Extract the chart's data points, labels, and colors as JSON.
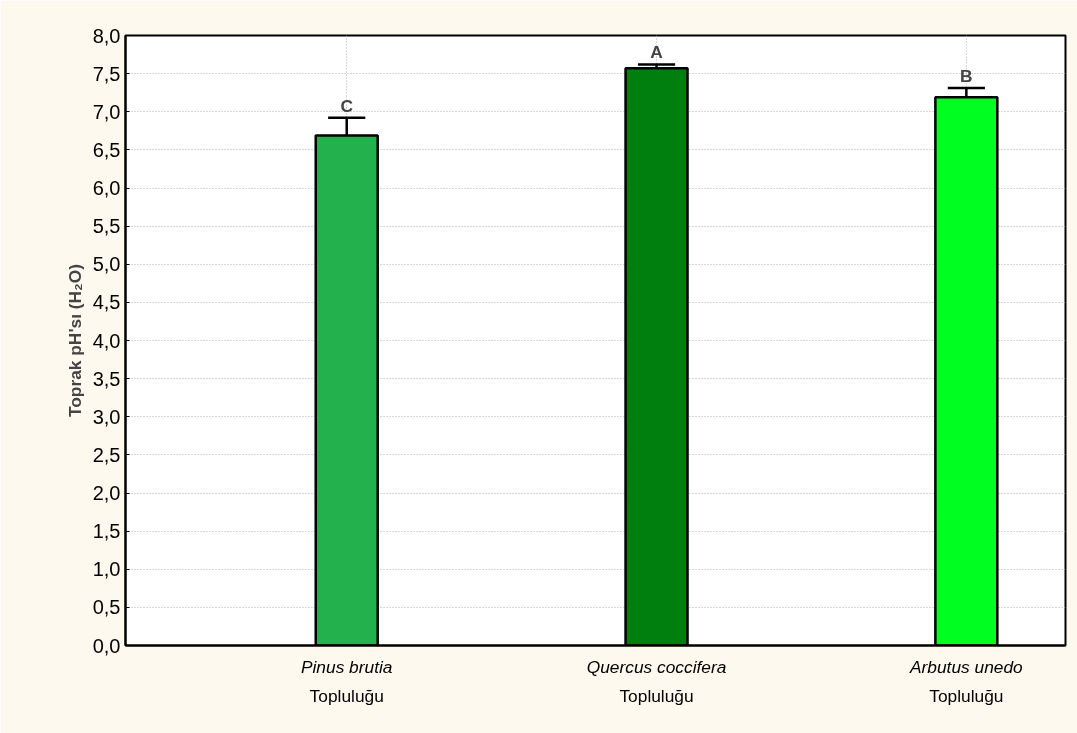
{
  "chart_data": {
    "type": "bar",
    "ylabel": "Toprak pH'sı (H₂O)",
    "categories": [
      "Pinus brutia\nTopluluğu",
      "Quercus coccifera\nTopluluğu",
      "Arbutus unedo\nTopluluğu"
    ],
    "values": [
      6.69,
      7.57,
      7.19
    ],
    "errors": [
      0.23,
      0.05,
      0.12
    ],
    "colors": [
      "#22b14c",
      "#007f0e",
      "#00ff21"
    ],
    "ylim": [
      0,
      8
    ],
    "yticks": [
      {
        "value": 0,
        "label": "0,0"
      },
      {
        "value": 0.5,
        "label": "0,5"
      },
      {
        "value": 1,
        "label": "1,0"
      },
      {
        "value": 1.5,
        "label": "1,5"
      },
      {
        "value": 2,
        "label": "2,0"
      },
      {
        "value": 2.5,
        "label": "2,5"
      },
      {
        "value": 3,
        "label": "3,0"
      },
      {
        "value": 3.5,
        "label": "3,5"
      },
      {
        "value": 4,
        "label": "4,0"
      },
      {
        "value": 4.5,
        "label": "4,5"
      },
      {
        "value": 5,
        "label": "5,0"
      },
      {
        "value": 5.5,
        "label": "5,5"
      },
      {
        "value": 6,
        "label": "6,0"
      },
      {
        "value": 6.5,
        "label": "6,5"
      },
      {
        "value": 7,
        "label": "7,0"
      },
      {
        "value": 7.5,
        "label": "7,5"
      },
      {
        "value": 8,
        "label": "8,0"
      }
    ],
    "annotations": [
      {
        "text": "C",
        "x": "Pinus brutia\nTopluluğu",
        "y": 6.92
      },
      {
        "text": "A",
        "x": "Quercus coccifera\nTopluluğu",
        "y": 7.62
      },
      {
        "text": "B",
        "x": "Arbutus unedo\nTopluluğu",
        "y": 7.31
      }
    ],
    "grid": true
  }
}
